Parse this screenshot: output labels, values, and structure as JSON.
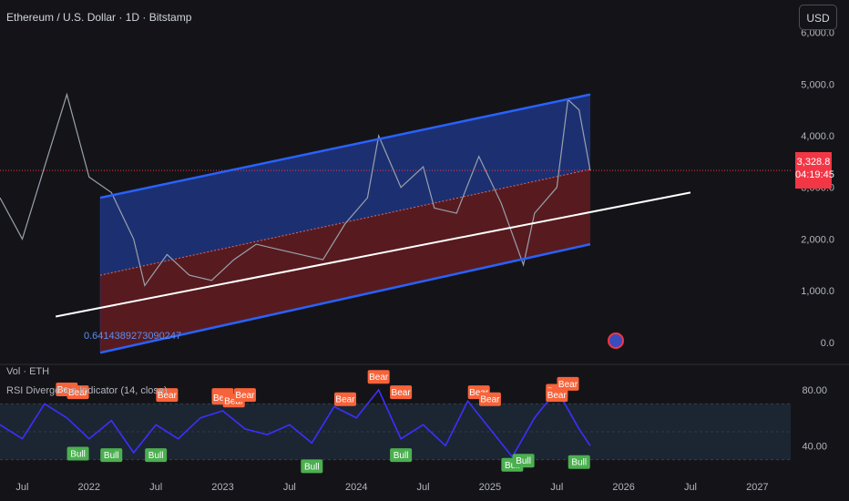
{
  "header": {
    "title": "Ethereum / U.S. Dollar · 1D · Bitstamp",
    "currency_button": "USD"
  },
  "price_tag": {
    "price": "3,328.8",
    "countdown": "04:19:45"
  },
  "fib_label": "0.6414389273090247",
  "vol_label": "Vol · ETH",
  "rsi_label": "RSI Divergence Indicator (14, close)",
  "colors": {
    "background": "#141418",
    "channel_line": "#2962ff",
    "upper_fill": "#1f3a8f",
    "lower_fill": "#6d1e22",
    "price_line": "#9aa0ad",
    "regression_line": "#ffffff",
    "rsi_line": "#3d2fff",
    "bear": "#f7633a",
    "bull": "#4caf50",
    "current_price": "#f23645"
  },
  "chart_data": [
    {
      "type": "line",
      "title": "Ethereum / U.S. Dollar · 1D · Bitstamp",
      "xlabel": "",
      "ylabel": "",
      "x_ticks": [
        "Jul",
        "2022",
        "Jul",
        "2023",
        "Jul",
        "2024",
        "Jul",
        "2025",
        "Jul",
        "2026",
        "Jul",
        "2027"
      ],
      "y_ticks": [
        "0.0",
        "1,000.0",
        "2,000.0",
        "3,000.0",
        "4,000.0",
        "5,000.0",
        "6,000.0"
      ],
      "ylim": [
        -250,
        6100
      ],
      "xlim": [
        "2021-05",
        "2027-04"
      ],
      "current_price": 3328.8,
      "series": [
        {
          "x": [
            "2021-05",
            "2021-07",
            "2021-09",
            "2021-11",
            "2022-01",
            "2022-03",
            "2022-05",
            "2022-06",
            "2022-08",
            "2022-10",
            "2022-12",
            "2023-02",
            "2023-04",
            "2023-06",
            "2023-08",
            "2023-10",
            "2023-12",
            "2024-02",
            "2024-03",
            "2024-05",
            "2024-07",
            "2024-08",
            "2024-10",
            "2024-12",
            "2025-02",
            "2025-04",
            "2025-05",
            "2025-07",
            "2025-08",
            "2025-09",
            "2025-10"
          ],
          "values": [
            2800,
            2000,
            3400,
            4800,
            3200,
            2900,
            2000,
            1100,
            1700,
            1300,
            1200,
            1600,
            1900,
            1800,
            1700,
            1600,
            2300,
            2800,
            4000,
            3000,
            3400,
            2600,
            2500,
            3600,
            2700,
            1500,
            2500,
            3000,
            4700,
            4500,
            3328
          ]
        }
      ],
      "channel": {
        "upper": {
          "x": [
            "2022-02",
            "2025-10"
          ],
          "values": [
            2800,
            4800
          ]
        },
        "lower": {
          "x": [
            "2022-02",
            "2025-10"
          ],
          "values": [
            -200,
            1900
          ]
        },
        "mid": {
          "x": [
            "2022-02",
            "2025-10"
          ],
          "values": [
            1300,
            3350
          ]
        },
        "regression": {
          "x": [
            "2021-10",
            "2026-07"
          ],
          "values": [
            500,
            2900
          ]
        },
        "fib_value": 0.6414389273090247
      }
    },
    {
      "type": "line",
      "title": "RSI Divergence Indicator (14, close)",
      "y_ticks": [
        "40.00",
        "80.00"
      ],
      "ylim": [
        20,
        95
      ],
      "x": [
        "2021-05",
        "2021-07",
        "2021-09",
        "2021-11",
        "2022-01",
        "2022-03",
        "2022-05",
        "2022-07",
        "2022-09",
        "2022-11",
        "2023-01",
        "2023-03",
        "2023-05",
        "2023-07",
        "2023-09",
        "2023-11",
        "2024-01",
        "2024-03",
        "2024-05",
        "2024-07",
        "2024-09",
        "2024-11",
        "2025-01",
        "2025-03",
        "2025-05",
        "2025-07",
        "2025-09",
        "2025-10"
      ],
      "values": [
        55,
        45,
        70,
        60,
        45,
        58,
        35,
        55,
        45,
        60,
        65,
        52,
        48,
        55,
        42,
        68,
        60,
        80,
        45,
        55,
        40,
        72,
        52,
        32,
        60,
        80,
        52,
        40
      ],
      "markers": [
        {
          "label": "Bear",
          "x": "2021-11",
          "y": 80
        },
        {
          "label": "Bear",
          "x": "2021-12",
          "y": 78
        },
        {
          "label": "Bear",
          "x": "2022-08",
          "y": 76
        },
        {
          "label": "Bear",
          "x": "2023-01",
          "y": 76
        },
        {
          "label": "Bear",
          "x": "2023-01",
          "y": 74
        },
        {
          "label": "Bear",
          "x": "2023-02",
          "y": 72
        },
        {
          "label": "Bear",
          "x": "2023-03",
          "y": 76
        },
        {
          "label": "Bear",
          "x": "2023-12",
          "y": 73
        },
        {
          "label": "Bear",
          "x": "2024-03",
          "y": 89
        },
        {
          "label": "Bear",
          "x": "2024-05",
          "y": 78
        },
        {
          "label": "Bear",
          "x": "2024-12",
          "y": 78
        },
        {
          "label": "Bear",
          "x": "2025-01",
          "y": 73
        },
        {
          "label": "Bear",
          "x": "2025-07",
          "y": 79
        },
        {
          "label": "Bear",
          "x": "2025-07",
          "y": 76
        },
        {
          "label": "Bear",
          "x": "2025-08",
          "y": 84
        },
        {
          "label": "Bull",
          "x": "2021-12",
          "y": 34
        },
        {
          "label": "Bull",
          "x": "2022-03",
          "y": 33
        },
        {
          "label": "Bull",
          "x": "2022-07",
          "y": 33
        },
        {
          "label": "Bull",
          "x": "2023-09",
          "y": 25
        },
        {
          "label": "Bull",
          "x": "2024-05",
          "y": 33
        },
        {
          "label": "Bull",
          "x": "2025-03",
          "y": 26
        },
        {
          "label": "Bull",
          "x": "2025-04",
          "y": 29
        },
        {
          "label": "Bull",
          "x": "2025-09",
          "y": 28
        }
      ]
    }
  ]
}
